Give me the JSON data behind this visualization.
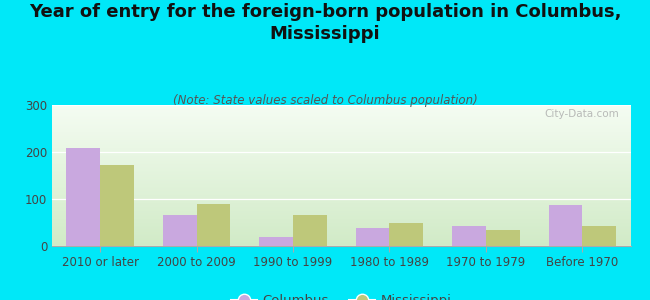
{
  "title": "Year of entry for the foreign-born population in Columbus,\nMississippi",
  "subtitle": "(Note: State values scaled to Columbus population)",
  "categories": [
    "2010 or later",
    "2000 to 2009",
    "1990 to 1999",
    "1980 to 1989",
    "1970 to 1979",
    "Before 1970"
  ],
  "columbus_values": [
    208,
    65,
    20,
    38,
    42,
    88
  ],
  "mississippi_values": [
    172,
    90,
    65,
    50,
    35,
    42
  ],
  "columbus_color": "#c9a8df",
  "mississippi_color": "#bec87a",
  "background_color": "#00e8f8",
  "ylim": [
    0,
    300
  ],
  "yticks": [
    0,
    100,
    200,
    300
  ],
  "legend_labels": [
    "Columbus",
    "Mississippi"
  ],
  "bar_width": 0.35,
  "title_fontsize": 13,
  "subtitle_fontsize": 8.5,
  "axis_fontsize": 8.5,
  "legend_fontsize": 9.5,
  "watermark": "City-Data.com"
}
